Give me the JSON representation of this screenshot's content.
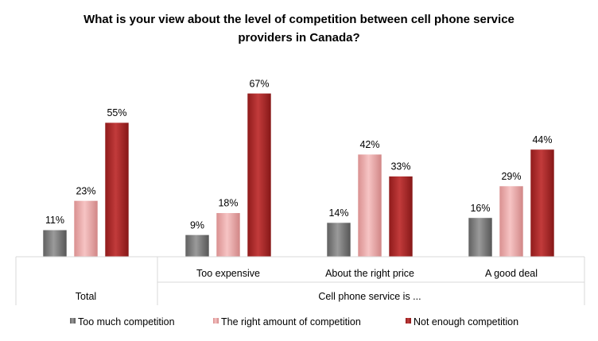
{
  "chart_data": {
    "type": "bar",
    "title_lines": [
      "What is your view about the level of competition between cell phone service",
      "providers in Canada?"
    ],
    "categories": [
      "Total",
      "Too expensive",
      "About the right price",
      "A good deal"
    ],
    "group_label": "Cell phone service is ...",
    "series": [
      {
        "name": "Too much competition",
        "values": [
          11,
          9,
          14,
          16
        ],
        "color": "#7f7f7f"
      },
      {
        "name": "The right amount of competition",
        "values": [
          23,
          18,
          42,
          29
        ],
        "color": "#e6a0a0"
      },
      {
        "name": "Not enough competition",
        "values": [
          55,
          67,
          33,
          44
        ],
        "color": "#a52a2a"
      }
    ],
    "value_format": "percent",
    "ylim": [
      0,
      70
    ],
    "grid": false,
    "legend_position": "bottom"
  }
}
